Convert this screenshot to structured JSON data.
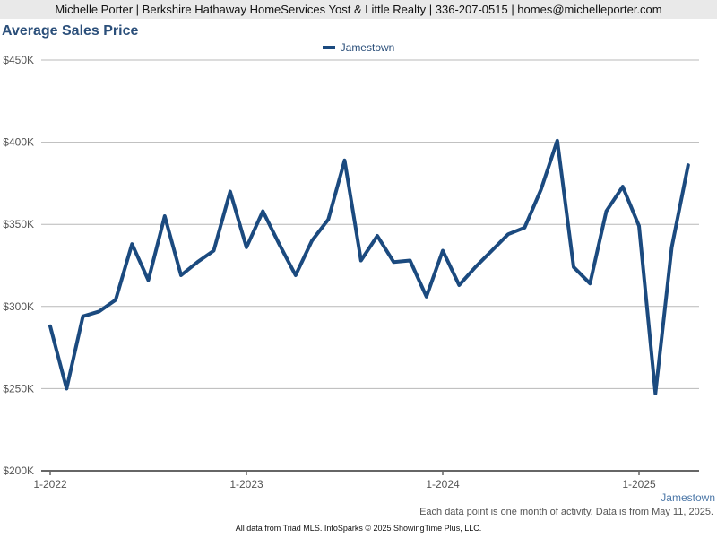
{
  "header": {
    "banner": "Michelle Porter | Berkshire Hathaway HomeServices Yost & Little Realty | 336-207-0515 | homes@michelleporter.com"
  },
  "chart_data": {
    "type": "line",
    "title": "Average Sales Price",
    "xlabel": "",
    "ylabel": "",
    "ylim": [
      200000,
      450000
    ],
    "yticks": [
      {
        "value": 200000,
        "label": "$200K"
      },
      {
        "value": 250000,
        "label": "$250K"
      },
      {
        "value": 300000,
        "label": "$300K"
      },
      {
        "value": 350000,
        "label": "$350K"
      },
      {
        "value": 400000,
        "label": "$400K"
      },
      {
        "value": 450000,
        "label": "$450K"
      }
    ],
    "xticks": [
      {
        "month": "2022-01",
        "label": "1-2022"
      },
      {
        "month": "2023-01",
        "label": "1-2023"
      },
      {
        "month": "2024-01",
        "label": "1-2024"
      },
      {
        "month": "2025-01",
        "label": "1-2025"
      }
    ],
    "x": [
      "2022-01",
      "2022-02",
      "2022-03",
      "2022-04",
      "2022-05",
      "2022-06",
      "2022-07",
      "2022-08",
      "2022-09",
      "2022-10",
      "2022-11",
      "2022-12",
      "2023-01",
      "2023-02",
      "2023-03",
      "2023-04",
      "2023-05",
      "2023-06",
      "2023-07",
      "2023-08",
      "2023-09",
      "2023-10",
      "2023-11",
      "2023-12",
      "2024-01",
      "2024-02",
      "2024-03",
      "2024-04",
      "2024-05",
      "2024-06",
      "2024-07",
      "2024-08",
      "2024-09",
      "2024-10",
      "2024-11",
      "2024-12",
      "2025-01",
      "2025-02",
      "2025-03",
      "2025-04"
    ],
    "series": [
      {
        "name": "Jamestown",
        "color": "#1b4a7f",
        "values": [
          288000,
          250000,
          294000,
          297000,
          304000,
          338000,
          316000,
          355000,
          319000,
          327000,
          334000,
          370000,
          336000,
          358000,
          338000,
          319000,
          340000,
          353000,
          389000,
          328000,
          343000,
          327000,
          328000,
          306000,
          334000,
          313000,
          324000,
          334000,
          344000,
          348000,
          371000,
          401000,
          324000,
          314000,
          358000,
          373000,
          349000,
          247000,
          336000,
          386000
        ]
      }
    ],
    "grid": true,
    "legend": "top-center"
  },
  "labels": {
    "series_label": "Jamestown",
    "note": "Each data point is one month of activity. Data is from May 11, 2025.",
    "footer": "All data from Triad MLS. InfoSparks © 2025 ShowingTime Plus, LLC."
  }
}
